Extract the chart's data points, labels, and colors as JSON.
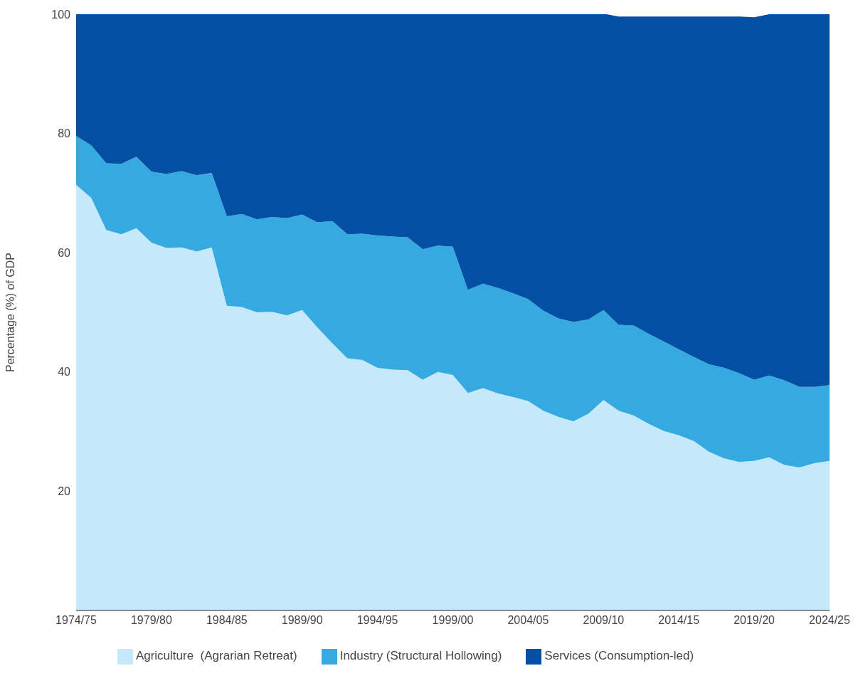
{
  "chart_data": {
    "type": "area",
    "stacked": true,
    "legend": "bottom",
    "ylabel": "Percentage (%) of GDP",
    "ylim": [
      0,
      100
    ],
    "yticks": [
      20,
      40,
      60,
      80,
      100
    ],
    "categories": [
      "1974/75",
      null,
      null,
      null,
      null,
      "1979/80",
      null,
      null,
      null,
      null,
      "1984/85",
      null,
      null,
      null,
      null,
      "1989/90",
      null,
      null,
      null,
      null,
      "1994/95",
      null,
      null,
      null,
      null,
      "1999/00",
      null,
      null,
      null,
      null,
      "2004/05",
      null,
      null,
      null,
      null,
      "2009/10",
      null,
      null,
      null,
      null,
      "2014/15",
      null,
      null,
      null,
      null,
      "2019/20",
      null,
      null,
      null,
      null,
      "2024/25"
    ],
    "series": [
      {
        "name": "Agriculture  (Agrarian Retreat)",
        "color": "#c5e9f9",
        "values": [
          71.4,
          69.2,
          63.8,
          63.1,
          64.1,
          61.7,
          60.8,
          60.9,
          60.2,
          60.9,
          51.1,
          50.9,
          50.0,
          50.1,
          49.5,
          50.4,
          47.5,
          44.8,
          42.3,
          42.0,
          40.7,
          40.4,
          40.3,
          38.7,
          40.0,
          39.5,
          36.5,
          37.3,
          36.4,
          35.8,
          35.1,
          33.5,
          32.5,
          31.7,
          33.0,
          35.3,
          33.5,
          32.7,
          31.3,
          30.1,
          29.4,
          28.4,
          26.6,
          25.5,
          24.9,
          25.1,
          25.7,
          24.4,
          24.0,
          24.7,
          25.1
        ]
      },
      {
        "name": "Industry (Structural Hollowing)",
        "color": "#36aae0",
        "values": [
          8.2,
          8.8,
          11.2,
          11.8,
          12.0,
          11.9,
          12.4,
          12.8,
          12.8,
          12.5,
          15.0,
          15.6,
          15.6,
          15.9,
          16.3,
          16.0,
          17.6,
          20.5,
          20.8,
          21.2,
          22.2,
          22.3,
          22.3,
          21.9,
          21.2,
          21.5,
          17.3,
          17.5,
          17.7,
          17.4,
          17.1,
          16.8,
          16.5,
          16.7,
          15.8,
          15.1,
          14.4,
          15.1,
          15.1,
          15.0,
          14.4,
          14.1,
          14.7,
          15.2,
          14.9,
          13.6,
          13.7,
          14.2,
          13.5,
          12.8,
          12.7
        ]
      },
      {
        "name": "Services (Consumption-led)",
        "color": "#024fa3",
        "values": [
          20.4,
          22.1,
          25.0,
          25.1,
          23.9,
          26.4,
          26.8,
          26.3,
          27.0,
          26.6,
          33.9,
          33.5,
          34.4,
          34.0,
          34.2,
          33.6,
          34.9,
          34.7,
          36.9,
          36.8,
          37.1,
          37.4,
          37.6,
          39.5,
          38.8,
          39.0,
          46.2,
          45.2,
          45.9,
          46.8,
          47.8,
          49.7,
          51.0,
          51.7,
          51.4,
          49.7,
          51.7,
          51.8,
          53.2,
          54.5,
          55.8,
          57.1,
          58.3,
          58.9,
          59.8,
          60.8,
          60.6,
          61.4,
          62.5,
          62.5,
          62.2
        ]
      }
    ]
  }
}
